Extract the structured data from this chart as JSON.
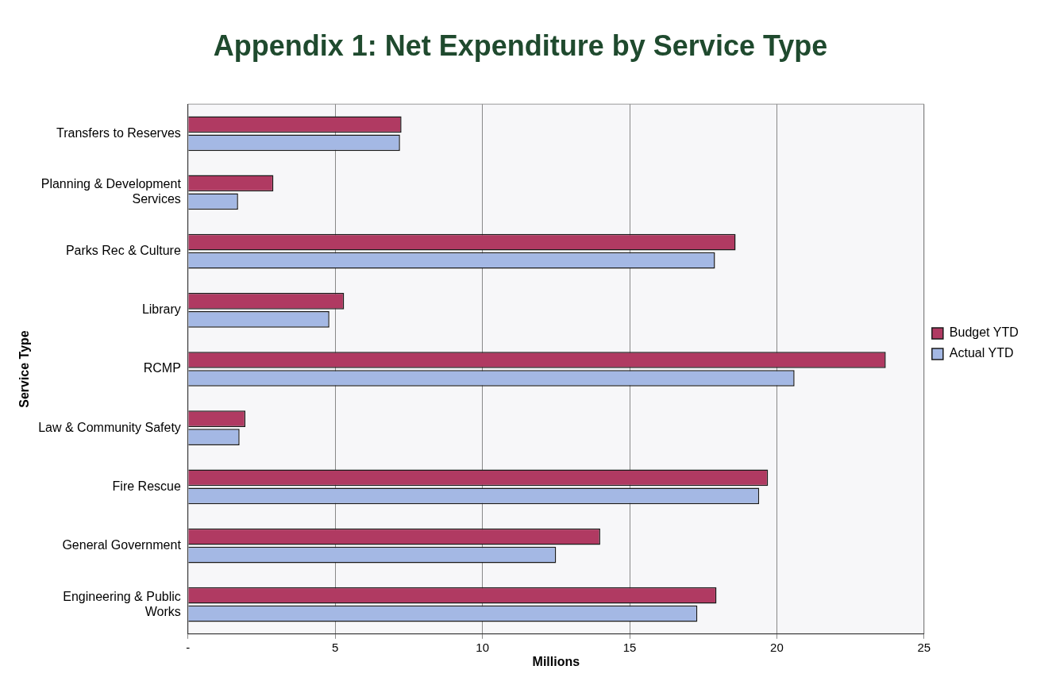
{
  "chart_data": {
    "type": "bar",
    "orientation": "horizontal",
    "title": "Appendix 1: Net Expenditure by Service Type",
    "xlabel": "Millions",
    "ylabel": "Service Type",
    "categories": [
      "Transfers to Reserves",
      "Planning & Development Services",
      "Parks Rec & Culture",
      "Library",
      "RCMP",
      "Law & Community Safety",
      "Fire Rescue",
      "General Government",
      "Engineering & Public Works"
    ],
    "series": [
      {
        "name": "Budget YTD",
        "color": "#b03a62",
        "values": [
          7.25,
          2.9,
          18.6,
          5.3,
          23.7,
          1.95,
          19.7,
          14.0,
          17.95
        ]
      },
      {
        "name": "Actual YTD",
        "color": "#a4b8e4",
        "values": [
          7.2,
          1.7,
          17.9,
          4.8,
          20.6,
          1.75,
          19.4,
          12.5,
          17.3
        ]
      }
    ],
    "xlim": [
      0,
      25
    ],
    "xticks": [
      {
        "value": 0,
        "label": "-"
      },
      5,
      10,
      15,
      20,
      25
    ],
    "grid": "x",
    "legend": "right"
  }
}
